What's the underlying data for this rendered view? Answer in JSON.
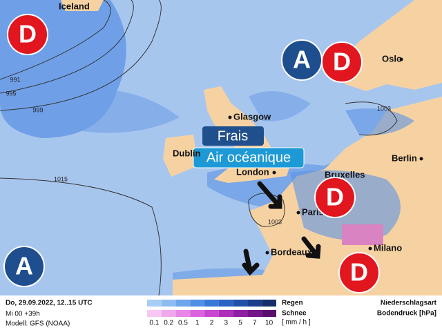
{
  "map": {
    "cities": [
      "Iceland",
      "Oslo",
      "Glasgow",
      "Dublin",
      "London",
      "Bruxelles",
      "Berlin",
      "Paris",
      "Milano",
      "Bordeaux"
    ],
    "isobars": [
      991,
      995,
      999,
      1015,
      1003,
      1003
    ],
    "pressure_systems": [
      "D",
      "A",
      "D",
      "D",
      "A",
      "D"
    ],
    "banner": {
      "title": "Frais",
      "subtitle": "Air océanique"
    }
  },
  "footer": {
    "date": "Do, 29.09.2022, 12..15 UTC",
    "run": "Mi 00 +39h",
    "model": "Modell: GFS (NOAA)",
    "legend": {
      "rain": "Regen",
      "snow": "Schnee",
      "unit": "[ mm / h ]",
      "scale": [
        0.1,
        0.2,
        0.5,
        1,
        2,
        3,
        5,
        7,
        10
      ]
    },
    "right": [
      "Niederschlagsart",
      "Bodendruck [hPa]"
    ]
  }
}
